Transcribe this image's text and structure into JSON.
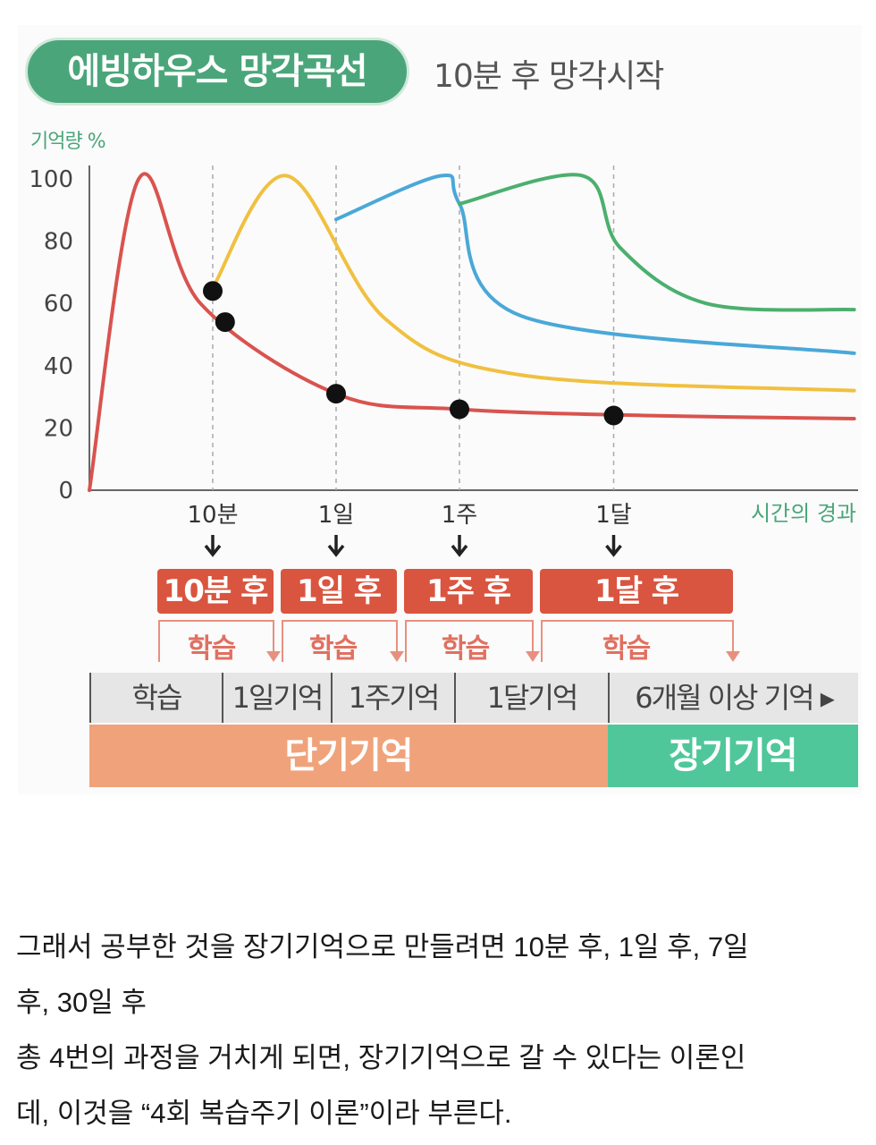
{
  "chart_data": {
    "type": "line",
    "title": "에빙하우스 망각곡선",
    "subtitle": "10분 후 망각시작",
    "ylabel": "기억량 %",
    "xlabel": "시간의 경과",
    "ylim": [
      0,
      100
    ],
    "yticks": [
      "100",
      "80",
      "60",
      "40",
      "20",
      "0"
    ],
    "xticks": [
      "10분",
      "1일",
      "1주",
      "1달"
    ],
    "grid": "vertical dashed at review points",
    "series": [
      {
        "color": "#d9534f",
        "points": [
          [
            0,
            0
          ],
          [
            0.4,
            100
          ],
          [
            0.9,
            60
          ],
          [
            2.0,
            31
          ],
          [
            3.0,
            26
          ],
          [
            4.5,
            24
          ],
          [
            6.2,
            23
          ]
        ]
      },
      {
        "color": "#f0c040",
        "points": [
          [
            1.0,
            65
          ],
          [
            1.6,
            101
          ],
          [
            2.4,
            55
          ],
          [
            3.5,
            37
          ],
          [
            6.2,
            32
          ]
        ]
      },
      {
        "color": "#4aa8d8",
        "points": [
          [
            2.0,
            87
          ],
          [
            2.85,
            101
          ],
          [
            3.0,
            92
          ],
          [
            3.5,
            56
          ],
          [
            6.2,
            44
          ]
        ]
      },
      {
        "color": "#4caf6e",
        "points": [
          [
            3.0,
            92
          ],
          [
            4.0,
            101
          ],
          [
            4.3,
            78
          ],
          [
            5.0,
            60
          ],
          [
            6.2,
            58
          ]
        ]
      }
    ],
    "markers": [
      [
        1.0,
        64
      ],
      [
        1.1,
        54
      ],
      [
        2.0,
        31
      ],
      [
        3.0,
        26
      ],
      [
        4.25,
        24
      ]
    ],
    "review_points": [
      {
        "tick": "10분",
        "label": "10분 후",
        "study": "학습"
      },
      {
        "tick": "1일",
        "label": "1일 후",
        "study": "학습"
      },
      {
        "tick": "1주",
        "label": "1주 후",
        "study": "학습"
      },
      {
        "tick": "1달",
        "label": "1달 후",
        "study": "학습"
      }
    ],
    "stages": [
      "학습",
      "1일기억",
      "1주기억",
      "1달기억",
      "6개월 이상 기억 ▸"
    ],
    "memory_types": [
      "단기기억",
      "장기기억"
    ],
    "colors": {
      "title_bg": "#4aa67a",
      "review_bg": "#d9553f",
      "short_term": "#f0a27a",
      "long_term": "#4fc79b"
    }
  },
  "caption": {
    "lines": [
      "그래서 공부한 것을 장기기억으로 만들려면 10분 후, 1일 후, 7일",
      "후, 30일 후",
      "총 4번의 과정을 거치게 되면, 장기기억으로 갈 수 있다는 이론인",
      "데, 이것을 “4회 복습주기 이론”이라 부른다."
    ]
  }
}
